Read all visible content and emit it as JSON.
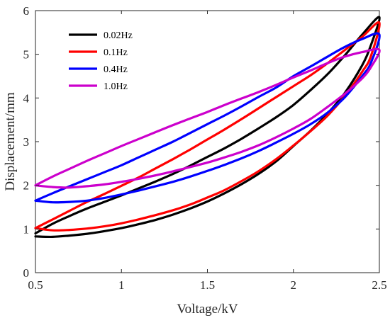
{
  "chart_data": {
    "type": "line",
    "title": "",
    "xlabel": "Voltage/kV",
    "ylabel": "Displacement/mm",
    "xlim": [
      0.5,
      2.5
    ],
    "ylim": [
      0,
      6
    ],
    "xticks": [
      "0.5",
      "1",
      "1.5",
      "2",
      "2.5"
    ],
    "yticks": [
      "0",
      "1",
      "2",
      "3",
      "4",
      "5",
      "6"
    ],
    "grid": false,
    "legend_position": "top-left",
    "series": [
      {
        "name": "0.02Hz",
        "color": "#000000",
        "loading": {
          "x": [
            0.5,
            0.6,
            0.7,
            0.8,
            0.9,
            1.0,
            1.1,
            1.2,
            1.3,
            1.4,
            1.5,
            1.6,
            1.7,
            1.8,
            1.9,
            2.0,
            2.1,
            2.2,
            2.3,
            2.4,
            2.5
          ],
          "y": [
            0.9,
            1.12,
            1.3,
            1.47,
            1.62,
            1.77,
            1.93,
            2.09,
            2.26,
            2.45,
            2.65,
            2.85,
            3.07,
            3.31,
            3.56,
            3.84,
            4.18,
            4.55,
            4.98,
            5.45,
            5.85
          ]
        },
        "unloading": {
          "x": [
            2.5,
            2.45,
            2.4,
            2.3,
            2.2,
            2.1,
            2.0,
            1.9,
            1.8,
            1.7,
            1.6,
            1.5,
            1.4,
            1.3,
            1.2,
            1.1,
            1.0,
            0.9,
            0.8,
            0.7,
            0.6,
            0.5
          ],
          "y": [
            5.85,
            5.2,
            4.75,
            4.12,
            3.65,
            3.25,
            2.9,
            2.55,
            2.27,
            2.03,
            1.82,
            1.63,
            1.47,
            1.33,
            1.21,
            1.11,
            1.02,
            0.95,
            0.89,
            0.85,
            0.82,
            0.83
          ]
        }
      },
      {
        "name": "0.1Hz",
        "color": "#ff0000",
        "loading": {
          "x": [
            0.5,
            0.6,
            0.7,
            0.8,
            0.9,
            1.0,
            1.1,
            1.2,
            1.3,
            1.4,
            1.5,
            1.6,
            1.7,
            1.8,
            1.9,
            2.0,
            2.1,
            2.2,
            2.3,
            2.4,
            2.5
          ],
          "y": [
            1.02,
            1.22,
            1.42,
            1.62,
            1.8,
            1.99,
            2.18,
            2.39,
            2.6,
            2.82,
            3.05,
            3.28,
            3.52,
            3.77,
            4.02,
            4.27,
            4.52,
            4.8,
            5.1,
            5.4,
            5.72
          ]
        },
        "unloading": {
          "x": [
            2.5,
            2.45,
            2.4,
            2.3,
            2.2,
            2.1,
            2.0,
            1.9,
            1.8,
            1.7,
            1.6,
            1.5,
            1.4,
            1.3,
            1.2,
            1.1,
            1.0,
            0.9,
            0.8,
            0.7,
            0.6,
            0.5
          ],
          "y": [
            5.72,
            4.95,
            4.6,
            4.05,
            3.6,
            3.24,
            2.91,
            2.6,
            2.33,
            2.1,
            1.89,
            1.72,
            1.56,
            1.43,
            1.32,
            1.22,
            1.13,
            1.06,
            1.01,
            0.98,
            0.97,
            1.02
          ]
        }
      },
      {
        "name": "0.4Hz",
        "color": "#0000ff",
        "loading": {
          "x": [
            0.5,
            0.6,
            0.7,
            0.8,
            0.9,
            1.0,
            1.1,
            1.2,
            1.3,
            1.4,
            1.5,
            1.6,
            1.7,
            1.8,
            1.9,
            2.0,
            2.1,
            2.2,
            2.3,
            2.4,
            2.5
          ],
          "y": [
            1.65,
            1.82,
            1.98,
            2.14,
            2.3,
            2.46,
            2.64,
            2.82,
            3.0,
            3.2,
            3.4,
            3.6,
            3.81,
            4.03,
            4.24,
            4.5,
            4.72,
            4.95,
            5.17,
            5.35,
            5.45
          ]
        },
        "unloading": {
          "x": [
            2.5,
            2.45,
            2.4,
            2.3,
            2.2,
            2.1,
            2.0,
            1.9,
            1.8,
            1.7,
            1.6,
            1.5,
            1.4,
            1.3,
            1.2,
            1.1,
            1.0,
            0.9,
            0.8,
            0.7,
            0.6,
            0.5
          ],
          "y": [
            5.45,
            4.8,
            4.5,
            4.02,
            3.67,
            3.4,
            3.18,
            2.98,
            2.79,
            2.62,
            2.47,
            2.33,
            2.2,
            2.08,
            1.98,
            1.88,
            1.79,
            1.71,
            1.65,
            1.62,
            1.61,
            1.65
          ]
        }
      },
      {
        "name": "1.0Hz",
        "color": "#cc00cc",
        "loading": {
          "x": [
            0.5,
            0.6,
            0.7,
            0.8,
            0.9,
            1.0,
            1.1,
            1.2,
            1.3,
            1.4,
            1.5,
            1.6,
            1.7,
            1.8,
            1.9,
            2.0,
            2.1,
            2.2,
            2.3,
            2.4,
            2.5
          ],
          "y": [
            2.0,
            2.2,
            2.38,
            2.56,
            2.73,
            2.9,
            3.06,
            3.22,
            3.38,
            3.53,
            3.68,
            3.84,
            3.99,
            4.14,
            4.3,
            4.47,
            4.63,
            4.8,
            4.95,
            5.05,
            5.1
          ]
        },
        "unloading": {
          "x": [
            2.5,
            2.45,
            2.4,
            2.3,
            2.2,
            2.1,
            2.0,
            1.9,
            1.8,
            1.7,
            1.6,
            1.5,
            1.4,
            1.3,
            1.2,
            1.1,
            1.0,
            0.9,
            0.8,
            0.7,
            0.6,
            0.5
          ],
          "y": [
            5.1,
            4.7,
            4.45,
            4.1,
            3.8,
            3.52,
            3.3,
            3.1,
            2.92,
            2.77,
            2.64,
            2.52,
            2.42,
            2.32,
            2.23,
            2.15,
            2.08,
            2.02,
            1.98,
            1.95,
            1.96,
            2.0
          ]
        }
      }
    ]
  }
}
